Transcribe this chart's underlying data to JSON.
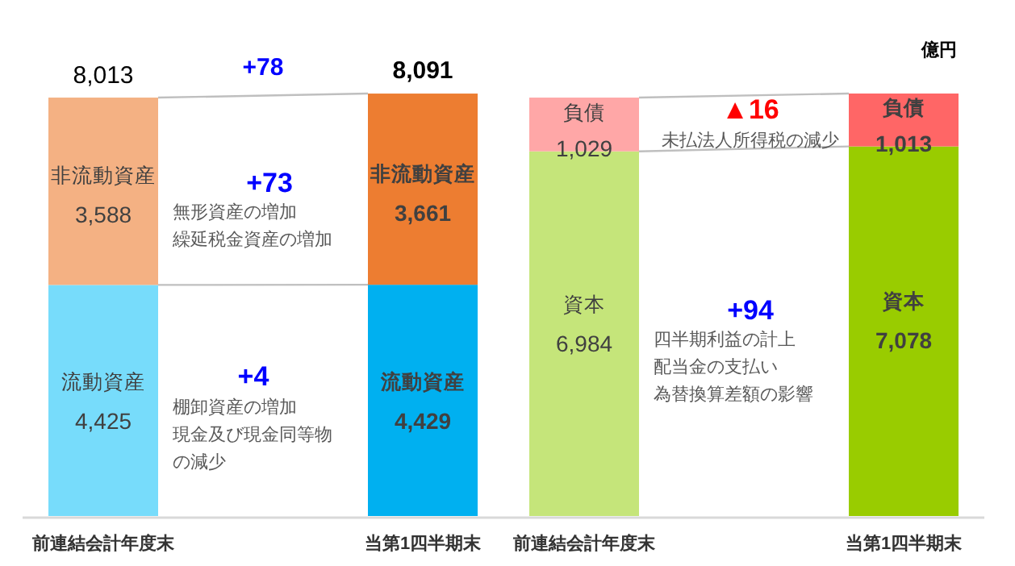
{
  "chart_data": [
    {
      "type": "bar",
      "stacked": true,
      "categories": [
        "前連結会計年度末",
        "当第1四半期末"
      ],
      "series": [
        {
          "name": "流動資産",
          "colors": [
            "#77dcfb",
            "#00b0f0"
          ],
          "values": [
            4425,
            4429
          ],
          "value_labels": [
            "4,425",
            "4,429"
          ]
        },
        {
          "name": "非流動資産",
          "colors": [
            "#f4b183",
            "#ed7d31"
          ],
          "values": [
            3588,
            3661
          ],
          "value_labels": [
            "3,588",
            "3,661"
          ]
        }
      ],
      "totals": [
        "8,013",
        "8,091"
      ],
      "annotations": [
        "+78",
        "+73",
        "無形資産の増加",
        "繰延税金資産の増加",
        "+4",
        "棚卸資産の増加",
        "現金及び現金同等物の減少"
      ]
    },
    {
      "type": "bar",
      "stacked": true,
      "categories": [
        "前連結会計年度末",
        "当第1四半期末"
      ],
      "series": [
        {
          "name": "資本",
          "colors": [
            "#c5e57a",
            "#99cc00"
          ],
          "values": [
            6984,
            7078
          ],
          "value_labels": [
            "6,984",
            "7,078"
          ]
        },
        {
          "name": "負債",
          "colors": [
            "#ffa7a7",
            "#ff6666"
          ],
          "values": [
            1029,
            1013
          ],
          "value_labels": [
            "1,029",
            "1,013"
          ]
        }
      ],
      "annotations": [
        "▲16",
        "未払法人所得税の減少",
        "+94",
        "四半期利益の計上",
        "配当金の支払い",
        "為替換算差額の影響",
        "億円"
      ]
    }
  ]
}
